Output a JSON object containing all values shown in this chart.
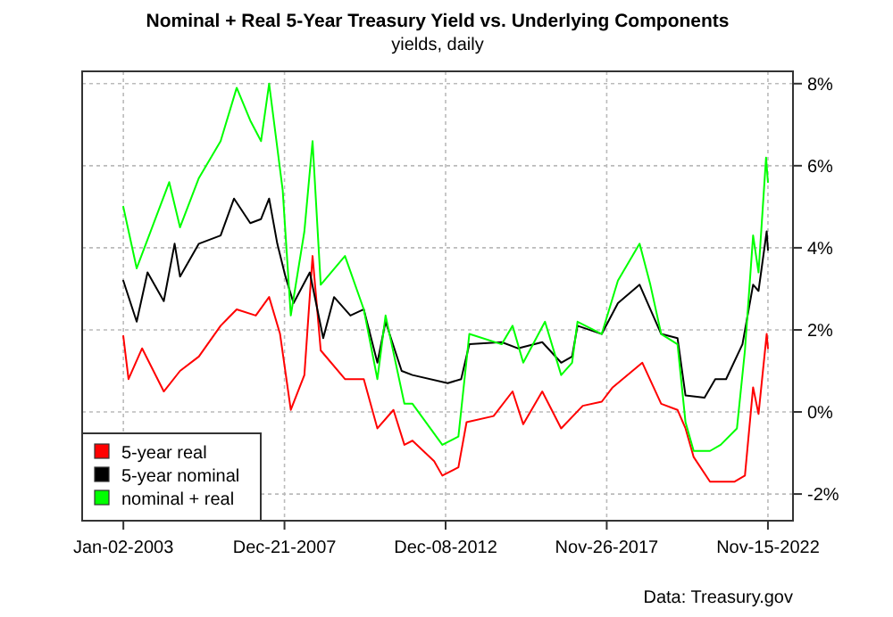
{
  "chart_data": {
    "type": "line",
    "title": "Nominal + Real 5-Year Treasury Yield vs. Underlying Components",
    "subtitle": "yields, daily",
    "annotations": [
      "Data: Treasury.gov"
    ],
    "xlim": [
      "2001-09-25",
      "2023-08-24"
    ],
    "xticks": [
      {
        "value": "2003-01-02",
        "label": "Jan-02-2003"
      },
      {
        "value": "2007-12-21",
        "label": "Dec-21-2007"
      },
      {
        "value": "2012-12-08",
        "label": "Dec-08-2012"
      },
      {
        "value": "2017-11-26",
        "label": "Nov-26-2017"
      },
      {
        "value": "2022-11-15",
        "label": "Nov-15-2022"
      }
    ],
    "ylim": [
      -2.65,
      8.3
    ],
    "yticks": [
      {
        "value": -2,
        "label": "-2%"
      },
      {
        "value": 0,
        "label": "0%"
      },
      {
        "value": 2,
        "label": "2%"
      },
      {
        "value": 4,
        "label": "4%"
      },
      {
        "value": 6,
        "label": "6%"
      },
      {
        "value": 8,
        "label": "8%"
      }
    ],
    "grid": true,
    "legend": "bottom left",
    "line_style": "solid",
    "marker": "none",
    "series": [
      {
        "name": "5-year real",
        "color": "#ff0000",
        "x": [
          "2003-01",
          "2003-03",
          "2003-08",
          "2004-04",
          "2004-10",
          "2005-05",
          "2006-01",
          "2006-07",
          "2007-02",
          "2007-07",
          "2007-11",
          "2008-03",
          "2008-08",
          "2008-11",
          "2009-02",
          "2009-11",
          "2010-06",
          "2010-11",
          "2011-05",
          "2011-09",
          "2011-12",
          "2012-08",
          "2012-11",
          "2013-05",
          "2013-08",
          "2014-06",
          "2015-01",
          "2015-05",
          "2015-12",
          "2016-07",
          "2017-03",
          "2017-10",
          "2018-02",
          "2019-01",
          "2019-08",
          "2020-02",
          "2020-05",
          "2020-08",
          "2021-02",
          "2021-11",
          "2022-03",
          "2022-06",
          "2022-08",
          "2022-11-01",
          "2022-11-15"
        ],
        "values": [
          1.85,
          0.8,
          1.55,
          0.5,
          1.0,
          1.35,
          2.1,
          2.5,
          2.35,
          2.8,
          1.9,
          0.05,
          0.9,
          3.8,
          1.5,
          0.8,
          0.8,
          -0.4,
          0.05,
          -0.8,
          -0.7,
          -1.2,
          -1.55,
          -1.35,
          -0.25,
          -0.1,
          0.5,
          -0.3,
          0.5,
          -0.4,
          0.15,
          0.25,
          0.6,
          1.2,
          0.2,
          0.05,
          -0.4,
          -1.1,
          -1.7,
          -1.7,
          -1.55,
          0.6,
          -0.05,
          1.9,
          1.55
        ]
      },
      {
        "name": "5-year nominal",
        "color": "#000000",
        "x": [
          "2003-01",
          "2003-06",
          "2003-10",
          "2004-04",
          "2004-08",
          "2004-10",
          "2005-05",
          "2006-01",
          "2006-06",
          "2006-12",
          "2007-04",
          "2007-07",
          "2007-10",
          "2008-01",
          "2008-04",
          "2008-10",
          "2009-03",
          "2009-07",
          "2010-01",
          "2010-06",
          "2010-11",
          "2011-02",
          "2011-08",
          "2011-12",
          "2013-01",
          "2013-06",
          "2013-09",
          "2014-09",
          "2015-03",
          "2015-12",
          "2016-07",
          "2016-11",
          "2017-01",
          "2017-10",
          "2018-04",
          "2018-12",
          "2019-04",
          "2019-08",
          "2020-02",
          "2020-05",
          "2020-12",
          "2021-04",
          "2021-08",
          "2022-02",
          "2022-06",
          "2022-08",
          "2022-11-01",
          "2022-11-15"
        ],
        "values": [
          3.2,
          2.2,
          3.4,
          2.7,
          4.1,
          3.3,
          4.1,
          4.3,
          5.2,
          4.6,
          4.7,
          5.2,
          4.1,
          3.3,
          2.65,
          3.4,
          1.8,
          2.8,
          2.35,
          2.5,
          1.2,
          2.2,
          1.0,
          0.9,
          0.7,
          0.8,
          1.65,
          1.7,
          1.55,
          1.7,
          1.2,
          1.35,
          2.1,
          1.9,
          2.65,
          3.1,
          2.5,
          1.9,
          1.8,
          0.4,
          0.35,
          0.8,
          0.8,
          1.65,
          3.1,
          2.95,
          4.4,
          3.95
        ]
      },
      {
        "name": "nominal + real",
        "color": "#00ff00",
        "x": [
          "2003-01",
          "2003-06",
          "2004-06",
          "2004-10",
          "2005-05",
          "2006-01",
          "2006-07",
          "2006-12",
          "2007-04",
          "2007-07",
          "2007-12",
          "2008-03",
          "2008-08",
          "2008-11",
          "2009-02",
          "2009-11",
          "2010-06",
          "2010-11",
          "2011-02",
          "2011-09",
          "2011-12",
          "2012-11",
          "2013-05",
          "2013-09",
          "2014-09",
          "2015-01",
          "2015-05",
          "2016-01",
          "2016-07",
          "2016-11",
          "2017-01",
          "2017-10",
          "2018-04",
          "2018-12",
          "2019-04",
          "2019-08",
          "2020-02",
          "2020-05",
          "2020-08",
          "2021-02",
          "2021-06",
          "2021-12",
          "2022-03",
          "2022-06",
          "2022-08",
          "2022-10-25",
          "2022-11-15"
        ],
        "values": [
          5.0,
          3.5,
          5.6,
          4.5,
          5.7,
          6.6,
          7.9,
          7.1,
          6.6,
          8.0,
          5.4,
          2.35,
          4.4,
          6.6,
          3.1,
          3.8,
          2.5,
          0.8,
          2.35,
          0.2,
          0.2,
          -0.8,
          -0.6,
          1.9,
          1.65,
          2.1,
          1.2,
          2.2,
          0.9,
          1.2,
          2.2,
          1.9,
          3.2,
          4.1,
          3.1,
          1.9,
          1.65,
          -0.25,
          -0.95,
          -0.95,
          -0.8,
          -0.4,
          1.5,
          4.3,
          3.4,
          6.2,
          5.6
        ]
      }
    ]
  }
}
